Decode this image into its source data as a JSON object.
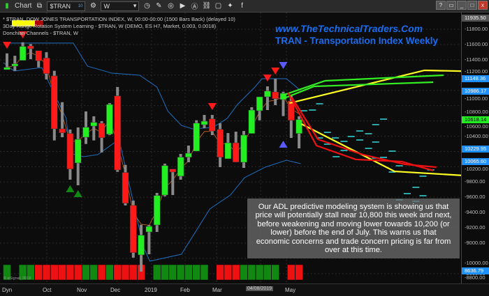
{
  "toolbar": {
    "app_label": "Chart",
    "symbol": "$TRAN",
    "symbol_badge": "10",
    "interval": "W"
  },
  "window_buttons": [
    "?",
    "▭",
    "_",
    "□",
    "x"
  ],
  "header": {
    "line1": "* $TRAN, DOW JONES TRANSPORTATION INDEX, W, 00:00-00:00 (1500 Bars Back) (delayed 10)",
    "line2": "3Day Range Rotation System Learning - $TRAN, W (DEMO, ES H7, Market, 0.003, 0.0018)",
    "line3": "Donchian Channels - $TRAN, W"
  },
  "overlay": {
    "site": "www.TheTechnicalTraders.Com",
    "title": "TRAN - Transportation Index Weekly",
    "note": "Our ADL predictive modeling system is showing us that price will potentially stall near 10,800 this week and next, before weakening and moving lower towards 10,200 (or lower) before the end of July.  This warns us that economic concerns and trade concern pricing is far from over at this time."
  },
  "copyright": "© eSignal, 2019",
  "bottom": {
    "dyn": "Dyn",
    "dates": [
      "Oct",
      "Nov",
      "Dec",
      "2019",
      "Feb",
      "Mar",
      "04/08/2019",
      "May"
    ]
  },
  "chart_data": {
    "type": "candlestick",
    "ylim": [
      8550,
      11950
    ],
    "y_ticks": [
      11800,
      11600,
      11400,
      11200,
      11000,
      10800,
      10600,
      10400,
      10200,
      10000,
      9800,
      9600,
      9400,
      9200,
      9000,
      8800,
      8600
    ],
    "axis_top_label": "11935.50",
    "price_badges": [
      {
        "value": "11148.36",
        "price": 11148.36,
        "color": "#1e90ff"
      },
      {
        "value": "10986.17",
        "price": 10986.17,
        "color": "#1e90ff"
      },
      {
        "value": "10618.14",
        "price": 10618.14,
        "color": "#22ee22"
      },
      {
        "value": "10229.95",
        "price": 10229.95,
        "color": "#1e90ff"
      },
      {
        "value": "10065.60",
        "price": 10065.6,
        "color": "#1e90ff"
      },
      {
        "value": "8636.79",
        "price": 8636.79,
        "color": "#1e90ff"
      }
    ],
    "colors": {
      "up": "#22ee22",
      "down": "#ff1a1a",
      "wick": "#8a8a8a",
      "band": "#1f6fc0",
      "ma": "#d2691e",
      "projection_up": "#ffff22",
      "projection_green": "#33ee22",
      "projection_red": "#ee1111",
      "target": "#33dddd"
    },
    "candles": [
      [
        11271,
        11484,
        11271,
        11301
      ],
      [
        11317,
        11453,
        11256,
        11347
      ],
      [
        11392,
        11629,
        11392,
        11575
      ],
      [
        11581,
        11606,
        11408,
        11545
      ],
      [
        11520,
        11515,
        11301,
        11387
      ],
      [
        11423,
        11499,
        11143,
        11219
      ],
      [
        11189,
        11256,
        10344,
        10496
      ],
      [
        10496,
        10845,
        10386,
        10444
      ],
      [
        10435,
        10487,
        9830,
        9970
      ],
      [
        10049,
        10514,
        9757,
        10359
      ],
      [
        10386,
        10724,
        10298,
        10517
      ],
      [
        10532,
        10660,
        10344,
        10581
      ],
      [
        10569,
        10596,
        10186,
        10380
      ],
      [
        10426,
        10833,
        10414,
        10815
      ],
      [
        10927,
        11043,
        9933,
        9958
      ],
      [
        9924,
        10024,
        9493,
        9523
      ],
      [
        9493,
        9556,
        8809,
        8875
      ],
      [
        8845,
        9240,
        8626,
        9103
      ],
      [
        9146,
        9237,
        8854,
        9219
      ],
      [
        9237,
        9657,
        9146,
        9623
      ],
      [
        9629,
        10040,
        9611,
        10015
      ],
      [
        9970,
        9967,
        9629,
        9930
      ],
      [
        9876,
        10167,
        9830,
        10125
      ],
      [
        10125,
        10277,
        10058,
        10177
      ],
      [
        10204,
        10608,
        10204,
        10571
      ],
      [
        10550,
        10678,
        10505,
        10596
      ],
      [
        10626,
        10678,
        10414,
        10468
      ],
      [
        10489,
        10569,
        9994,
        10125
      ],
      [
        10104,
        10441,
        10104,
        10313
      ],
      [
        10313,
        10459,
        10058,
        10061
      ],
      [
        10058,
        10468,
        9985,
        10414
      ],
      [
        10435,
        10779,
        10435,
        10742
      ],
      [
        10733,
        10915,
        10608,
        10915
      ],
      [
        10915,
        11052,
        10742,
        10991
      ],
      [
        10979,
        11152,
        10806,
        10891
      ],
      [
        10879,
        10982,
        10663,
        10961
      ],
      [
        10861,
        10936,
        10377,
        10608
      ],
      [
        10435,
        10660,
        10240,
        10618
      ]
    ],
    "rotation_blocks": [
      "G",
      "",
      "G",
      "G",
      "R",
      "R",
      "R",
      "R",
      "R",
      "R",
      "G",
      "G",
      "R",
      "G",
      "R",
      "R",
      "R",
      "R",
      "",
      "G",
      "G",
      "G",
      "G",
      "G",
      "G",
      "G",
      "",
      "R",
      "R",
      "R",
      "G",
      "G",
      "G",
      "G",
      "G",
      "",
      "R",
      "R"
    ],
    "bands": [
      [
        [
          0.56,
          11619
        ],
        [
          9.4,
          11619
        ],
        [
          11.2,
          11317
        ],
        [
          14.3,
          11225
        ],
        [
          17.8,
          11198
        ],
        [
          20,
          11043
        ],
        [
          21.4,
          10724
        ],
        [
          23.1,
          10541
        ],
        [
          24.5,
          10496
        ],
        [
          27.1,
          10514
        ],
        [
          28.9,
          10633
        ],
        [
          30.2,
          10815
        ],
        [
          32.4,
          11043
        ],
        [
          33.3,
          11152
        ],
        [
          36.4,
          11152
        ],
        [
          38.2,
          10997
        ]
      ],
      [
        [
          0.56,
          11362
        ],
        [
          1.9,
          11253
        ],
        [
          5.4,
          11298
        ],
        [
          8.5,
          10633
        ],
        [
          9,
          10177
        ],
        [
          10.7,
          10131
        ],
        [
          12.5,
          10158
        ],
        [
          15.2,
          10359
        ],
        [
          18.3,
          8945
        ],
        [
          19.1,
          8763
        ],
        [
          23.1,
          8854
        ],
        [
          26.7,
          9447
        ],
        [
          29.3,
          9629
        ],
        [
          31.1,
          9857
        ],
        [
          33.7,
          9994
        ],
        [
          36.4,
          10085
        ],
        [
          38.2,
          10040
        ]
      ]
    ],
    "markers": [
      {
        "bar": 1,
        "price": 11590,
        "shape": "down",
        "color": "#ff1a1a"
      },
      {
        "bar": 3,
        "price": 11727,
        "shape": "down",
        "color": "#ff1a1a"
      },
      {
        "bar": 27,
        "price": 10788,
        "shape": "down",
        "color": "#ff1a1a"
      },
      {
        "bar": 34,
        "price": 11162,
        "shape": "down",
        "color": "#ff1a1a"
      },
      {
        "bar": 35,
        "price": 11253,
        "shape": "down",
        "color": "#ff1a1a"
      },
      {
        "bar": 36,
        "price": 11326,
        "shape": "down",
        "color": "#5a5aff"
      },
      {
        "bar": 36,
        "price": 10295,
        "shape": "up",
        "color": "#5a5aff"
      },
      {
        "bar": 9,
        "price": 9712,
        "shape": "up",
        "color": "#118811"
      },
      {
        "bar": 10,
        "price": 9648,
        "shape": "up",
        "color": "#118811"
      }
    ],
    "projections": [
      {
        "color": "#ffff22",
        "points": [
          [
            36.8,
            10833
          ],
          [
            53.9,
            11262
          ],
          [
            62,
            11244
          ]
        ]
      },
      {
        "color": "#ffff22",
        "points": [
          [
            38.3,
            10560
          ],
          [
            50.1,
            9939
          ],
          [
            62,
            9866
          ]
        ]
      },
      {
        "color": "#33ee22",
        "points": [
          [
            35.9,
            10934
          ],
          [
            41.3,
            11125
          ],
          [
            56.3,
            11198
          ]
        ]
      },
      {
        "color": "#33ee22",
        "points": [
          [
            35.9,
            10888
          ],
          [
            39.9,
            11052
          ],
          [
            55,
            11107
          ]
        ]
      },
      {
        "color": "#ee1111",
        "points": [
          [
            37.1,
            10906
          ],
          [
            40.4,
            10359
          ],
          [
            46.1,
            10158
          ],
          [
            51.4,
            10031
          ],
          [
            55.4,
            9994
          ]
        ]
      },
      {
        "color": "#ee1111",
        "points": [
          [
            36.6,
            10970
          ],
          [
            40.2,
            10277
          ],
          [
            45.2,
            10095
          ],
          [
            51,
            10067
          ],
          [
            55,
            9949
          ]
        ]
      }
    ],
    "targets": [
      [
        40.6,
        10824
      ],
      [
        38.6,
        10733
      ],
      [
        39.7,
        10742
      ],
      [
        40.6,
        10377
      ],
      [
        41.6,
        10450
      ],
      [
        41.6,
        10295
      ],
      [
        42.6,
        10377
      ],
      [
        43.7,
        10332
      ],
      [
        43.7,
        10213
      ],
      [
        42.7,
        10131
      ],
      [
        44.6,
        10396
      ],
      [
        45.7,
        10468
      ],
      [
        45.7,
        10350
      ],
      [
        46.8,
        10432
      ],
      [
        46.8,
        10240
      ],
      [
        47.7,
        10323
      ],
      [
        47.7,
        10551
      ],
      [
        48.7,
        10623
      ],
      [
        47.7,
        10113
      ],
      [
        48.7,
        10122
      ],
      [
        49.8,
        10204
      ],
      [
        49.8,
        9930
      ],
      [
        50.7,
        10012
      ],
      [
        54.7,
        9958
      ],
      [
        53.7,
        9876
      ],
      [
        52.8,
        9730
      ],
      [
        51.7,
        9648
      ],
      [
        53.7,
        9620
      ],
      [
        50.7,
        9566
      ],
      [
        52.8,
        9547
      ]
    ]
  }
}
